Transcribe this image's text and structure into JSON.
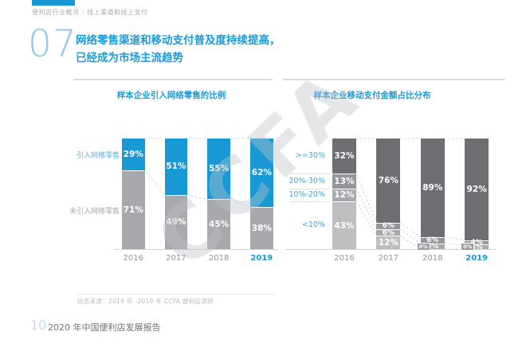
{
  "page": {
    "breadcrumb": "便利店行业概况 - 线上渠道和线上支付",
    "section_number": "07",
    "title_line1": "网络零售渠道和移动支付普及度持续提高，",
    "title_line2": "已经成为市场主流趋势",
    "source_note": "信息来源：2016 年 -2019 年 CCFA 便利店调研",
    "page_number": "10",
    "footer_title": "2020 年中国便利店发展报告",
    "watermark": "CCFA"
  },
  "colors": {
    "accent_blue": "#1899d6",
    "light_blue": "#8fc9ea",
    "label_blue": "#3aa7da",
    "bar_gray": "#a7a9ac",
    "dark_gray_1": "#6d6e71",
    "dark_gray_2": "#939598",
    "dark_gray_3": "#a7a9ac",
    "light_gray_4": "#bcbec0",
    "dotted_line": "#c9cbcd",
    "axis_line": "#d1d3d4"
  },
  "chart_data": [
    {
      "type": "bar",
      "subtype": "stacked-percent-column",
      "title": "样本企业引入网络零售的比例",
      "categories": [
        "2016",
        "2017",
        "2018",
        "2019"
      ],
      "highlight_category": "2019",
      "unit": "%",
      "ylim": [
        0,
        100
      ],
      "grid": false,
      "legend_position": "left-of-first-bar",
      "series": [
        {
          "name": "引入网络零售",
          "color": "#1899d6",
          "label_color": "#54b2de",
          "values": [
            29,
            51,
            55,
            62
          ]
        },
        {
          "name": "未引入网络零售",
          "color": "#a7a9ac",
          "label_color": "#a7a9ac",
          "values": [
            71,
            49,
            45,
            38
          ]
        }
      ]
    },
    {
      "type": "bar",
      "subtype": "stacked-percent-column",
      "title": "样本企业移动支付金额占比分布",
      "categories": [
        "2016",
        "2017",
        "2018",
        "2019"
      ],
      "highlight_category": "2019",
      "unit": "%",
      "ylim": [
        0,
        100
      ],
      "grid": false,
      "legend_position": "left-of-first-bar",
      "series": [
        {
          "name": ">=30%",
          "color": "#6d6e71",
          "label_color": "#3aa7da",
          "values": [
            32,
            76,
            89,
            92
          ]
        },
        {
          "name": "20%-30%",
          "color": "#939598",
          "label_color": "#3aa7da",
          "values": [
            13,
            6,
            6,
            4
          ]
        },
        {
          "name": "10%-20%",
          "color": "#a7a9ac",
          "label_color": "#3aa7da",
          "values": [
            12,
            6,
            5,
            4
          ]
        },
        {
          "name": "<10%",
          "color": "#bcbec0",
          "label_color": "#3aa7da",
          "values": [
            43,
            12,
            0,
            0
          ]
        }
      ]
    }
  ]
}
